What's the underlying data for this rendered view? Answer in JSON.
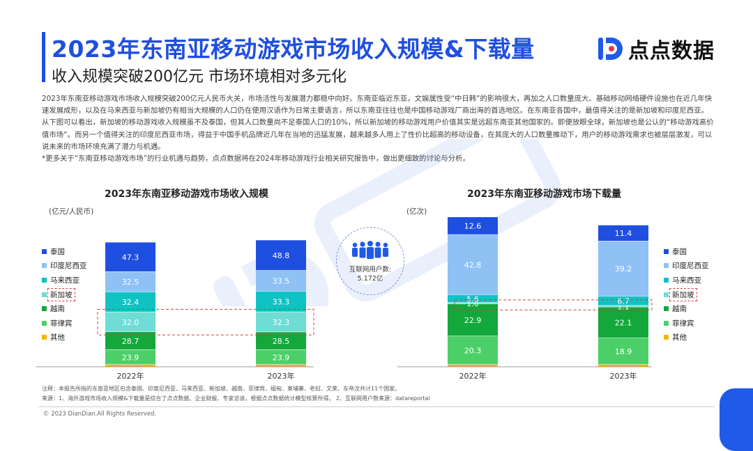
{
  "header": {
    "title": "2023年东南亚移动游戏市场收入规模&下载量",
    "subtitle": "收入规模突破200亿元 市场环境相对多元化",
    "brand": "点点数据"
  },
  "paragraphs": [
    "2023年东南亚移动游戏市场收入规模突破200亿元人民币大关，市场活性与发展潜力都稳中向好。东南亚临近东亚，文娱属性受“中日韩”的影响很大，再加之人口数量庞大、基础移动网络硬件设施也在近几年快速发展成形，以及在马来西亚与新加坡仍有相当大规模的人口仍在使用汉语作为日常主要语言，所以东南亚往往也是中国移动游戏厂商出海的首选地区。在东南亚各国中，最值得关注的是新加坡和印度尼西亚。从下图可以看出，新加坡的移动游戏收入规模虽不及泰国，但其人口数量尚不足泰国人口的10%，所以新加坡的移动游戏用户价值其实是远超东南亚其他国家的。即便放眼全球，新加坡也是公认的“移动游戏高价值市场”。而另一个值得关注的印度尼西亚市场，得益于中国手机品牌近几年在当地的迅猛发展，越来越多人用上了性价比超高的移动设备，在其庞大的人口数量推动下，用户的移动游戏需求也被层层激发，可以说未来的市场环境充满了潜力与机遇。",
    "*更多关于“东南亚移动游戏市场”的行业机遇与趋势，点点数据将在2024年移动游戏行业相关研究报告中，做出更细致的讨论与分析。"
  ],
  "center": {
    "label_line1": "互联网用户数:",
    "label_line2": "5.172亿",
    "icon": "people-group-icon"
  },
  "legend_items": [
    "泰国",
    "印度尼西亚",
    "马来西亚",
    "新加坡",
    "越南",
    "菲律宾",
    "其他"
  ],
  "colors": [
    "#1f4fe0",
    "#8fc1f5",
    "#11c2c4",
    "#6fdcd6",
    "#14a83c",
    "#4ccf69",
    "#f2b705"
  ],
  "highlight_color": "#d04040",
  "chart_data": [
    {
      "type": "bar",
      "stacked": true,
      "title": "2023年东南亚移动游戏市场收入规模",
      "unit": "(亿元/人民币)",
      "categories": [
        "2022年",
        "2023年"
      ],
      "series": [
        {
          "name": "其他",
          "values": [
            null,
            null
          ]
        },
        {
          "name": "菲律宾",
          "values": [
            23.9,
            23.9
          ]
        },
        {
          "name": "越南",
          "values": [
            28.7,
            28.5
          ]
        },
        {
          "name": "新加坡",
          "values": [
            32.0,
            32.3
          ]
        },
        {
          "name": "马来西亚",
          "values": [
            32.4,
            33.3
          ]
        },
        {
          "name": "印度尼西亚",
          "values": [
            32.5,
            33.5
          ]
        },
        {
          "name": "泰国",
          "values": [
            47.3,
            48.8
          ]
        }
      ]
    },
    {
      "type": "bar",
      "stacked": true,
      "title": "2023年东南亚移动游戏市场下载量",
      "unit": "(亿次)",
      "categories": [
        "2022年",
        "2023年"
      ],
      "series": [
        {
          "name": "其他",
          "values": [
            null,
            null
          ]
        },
        {
          "name": "菲律宾",
          "values": [
            20.3,
            18.9
          ]
        },
        {
          "name": "越南",
          "values": [
            22.9,
            22.1
          ]
        },
        {
          "name": "新加坡",
          "values": [
            1.0,
            1.1
          ]
        },
        {
          "name": "马来西亚",
          "values": [
            5.6,
            6.7
          ]
        },
        {
          "name": "印度尼西亚",
          "values": [
            42.8,
            39.2
          ]
        },
        {
          "name": "泰国",
          "values": [
            12.6,
            11.4
          ]
        }
      ]
    }
  ],
  "footnotes": [
    "注释：本报告所指的东南亚地区包含泰国、印度尼西亚、马来西亚、新加坡、越南、菲律宾、缅甸、柬埔寨、老挝、文莱、东帝汶共计11个国家。",
    "来源：1、海外游戏市场收入规模&下载量是综合了点点数据、企业财报、专家访谈，根据点点数据统计模型核算所得。 2、互联网用户数来源：datareportal"
  ],
  "copyright": "© 2023 DianDian.All Rights Reserved."
}
